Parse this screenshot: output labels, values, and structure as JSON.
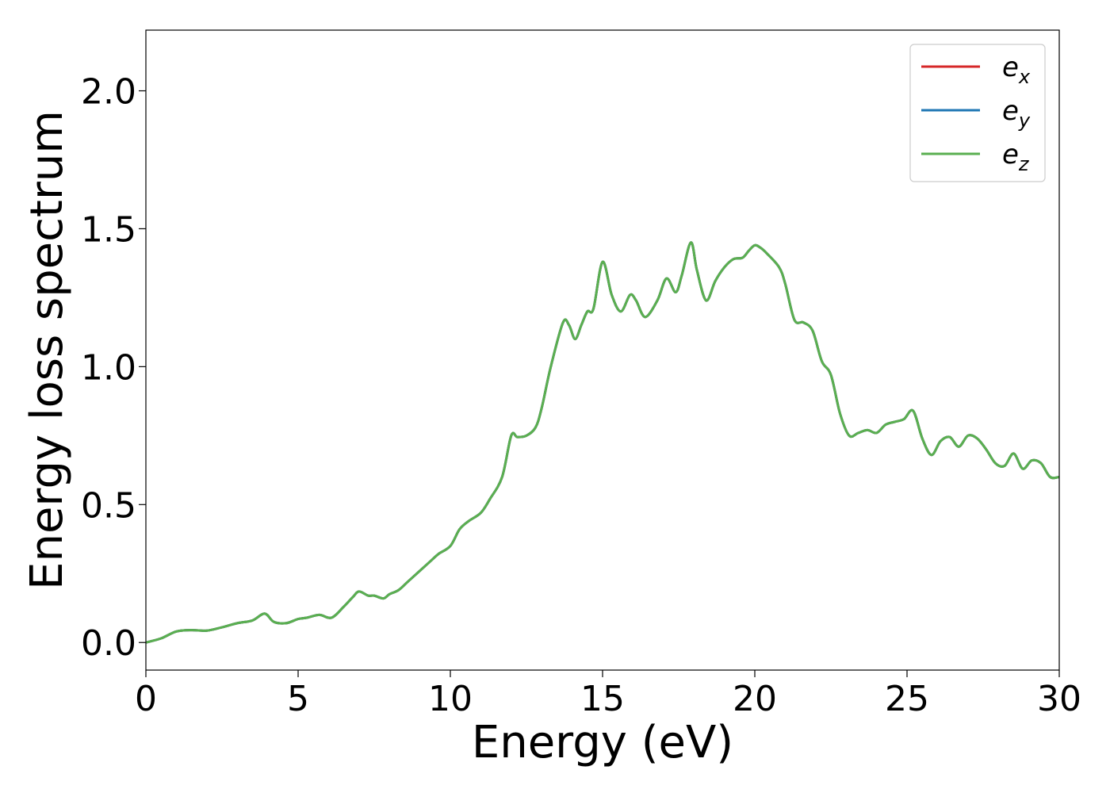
{
  "chart_data": {
    "type": "line",
    "xlabel": "Energy (eV)",
    "ylabel": "Energy loss spectrum",
    "xlim": [
      0,
      30
    ],
    "ylim": [
      -0.1,
      2.22
    ],
    "xticks": [
      0,
      5,
      10,
      15,
      20,
      25,
      30
    ],
    "xtick_labels": [
      "0",
      "5",
      "10",
      "15",
      "20",
      "25",
      "30"
    ],
    "yticks": [
      0.0,
      0.5,
      1.0,
      1.5,
      2.0
    ],
    "ytick_labels": [
      "0.0",
      "0.5",
      "1.0",
      "1.5",
      "2.0"
    ],
    "grid": false,
    "legend_position": "top-right",
    "x": [
      0,
      0.5,
      1,
      1.5,
      2,
      2.5,
      3,
      3.5,
      3.9,
      4.2,
      4.6,
      5,
      5.3,
      5.7,
      6.1,
      6.5,
      6.8,
      7,
      7.3,
      7.5,
      7.8,
      8,
      8.3,
      8.6,
      9,
      9.3,
      9.6,
      10,
      10.3,
      10.6,
      11,
      11.3,
      11.7,
      12,
      12.2,
      12.5,
      12.8,
      13,
      13.3,
      13.7,
      13.9,
      14.1,
      14.3,
      14.5,
      14.7,
      15,
      15.3,
      15.6,
      15.9,
      16.1,
      16.4,
      16.8,
      17.1,
      17.4,
      17.6,
      17.9,
      18.1,
      18.4,
      18.7,
      19,
      19.3,
      19.6,
      19.8,
      20,
      20.2,
      20.4,
      20.8,
      21,
      21.3,
      21.6,
      21.9,
      22.2,
      22.5,
      22.8,
      23.1,
      23.4,
      23.7,
      24,
      24.3,
      24.6,
      24.9,
      25.2,
      25.5,
      25.8,
      26.1,
      26.4,
      26.7,
      27,
      27.3,
      27.6,
      27.9,
      28.2,
      28.5,
      28.8,
      29.1,
      29.4,
      29.7,
      30
    ],
    "series": [
      {
        "name": "e_x",
        "label_base": "e",
        "label_sub": "x",
        "color": "#d62728",
        "values": [
          0.0,
          0.015,
          0.04,
          0.045,
          0.043,
          0.055,
          0.07,
          0.08,
          0.105,
          0.075,
          0.07,
          0.085,
          0.09,
          0.1,
          0.09,
          0.13,
          0.165,
          0.185,
          0.17,
          0.17,
          0.16,
          0.175,
          0.19,
          0.22,
          0.26,
          0.29,
          0.32,
          0.35,
          0.41,
          0.44,
          0.47,
          0.52,
          0.6,
          0.75,
          0.745,
          0.75,
          0.78,
          0.85,
          1.0,
          1.16,
          1.15,
          1.1,
          1.15,
          1.2,
          1.21,
          1.38,
          1.26,
          1.2,
          1.26,
          1.24,
          1.18,
          1.24,
          1.32,
          1.27,
          1.33,
          1.45,
          1.35,
          1.24,
          1.31,
          1.36,
          1.39,
          1.395,
          1.42,
          1.44,
          1.43,
          1.41,
          1.36,
          1.3,
          1.17,
          1.16,
          1.13,
          1.02,
          0.97,
          0.83,
          0.75,
          0.76,
          0.77,
          0.76,
          0.79,
          0.8,
          0.81,
          0.84,
          0.74,
          0.68,
          0.73,
          0.745,
          0.71,
          0.75,
          0.74,
          0.7,
          0.65,
          0.64,
          0.685,
          0.63,
          0.66,
          0.65,
          0.6,
          0.6
        ]
      },
      {
        "name": "e_y",
        "label_base": "e",
        "label_sub": "y",
        "color": "#1f77b4",
        "values": [
          0.0,
          0.015,
          0.04,
          0.045,
          0.043,
          0.055,
          0.07,
          0.08,
          0.105,
          0.075,
          0.07,
          0.085,
          0.09,
          0.1,
          0.09,
          0.13,
          0.165,
          0.185,
          0.17,
          0.17,
          0.16,
          0.175,
          0.19,
          0.22,
          0.26,
          0.29,
          0.32,
          0.35,
          0.41,
          0.44,
          0.47,
          0.52,
          0.6,
          0.75,
          0.745,
          0.75,
          0.78,
          0.85,
          1.0,
          1.16,
          1.15,
          1.1,
          1.15,
          1.2,
          1.21,
          1.38,
          1.26,
          1.2,
          1.26,
          1.24,
          1.18,
          1.24,
          1.32,
          1.27,
          1.33,
          1.45,
          1.35,
          1.24,
          1.31,
          1.36,
          1.39,
          1.395,
          1.42,
          1.44,
          1.43,
          1.41,
          1.36,
          1.3,
          1.17,
          1.16,
          1.13,
          1.02,
          0.97,
          0.83,
          0.75,
          0.76,
          0.77,
          0.76,
          0.79,
          0.8,
          0.81,
          0.84,
          0.74,
          0.68,
          0.73,
          0.745,
          0.71,
          0.75,
          0.74,
          0.7,
          0.65,
          0.64,
          0.685,
          0.63,
          0.66,
          0.65,
          0.6,
          0.6
        ]
      },
      {
        "name": "e_z",
        "label_base": "e",
        "label_sub": "z",
        "color": "#5aaf50",
        "values": [
          0.0,
          0.015,
          0.04,
          0.045,
          0.043,
          0.055,
          0.07,
          0.08,
          0.105,
          0.075,
          0.07,
          0.085,
          0.09,
          0.1,
          0.09,
          0.13,
          0.165,
          0.185,
          0.17,
          0.17,
          0.16,
          0.175,
          0.19,
          0.22,
          0.26,
          0.29,
          0.32,
          0.35,
          0.41,
          0.44,
          0.47,
          0.52,
          0.6,
          0.75,
          0.745,
          0.75,
          0.78,
          0.85,
          1.0,
          1.16,
          1.15,
          1.1,
          1.15,
          1.2,
          1.21,
          1.38,
          1.26,
          1.2,
          1.26,
          1.24,
          1.18,
          1.24,
          1.32,
          1.27,
          1.33,
          1.45,
          1.35,
          1.24,
          1.31,
          1.36,
          1.39,
          1.395,
          1.42,
          1.44,
          1.43,
          1.41,
          1.36,
          1.3,
          1.17,
          1.16,
          1.13,
          1.02,
          0.97,
          0.83,
          0.75,
          0.76,
          0.77,
          0.76,
          0.79,
          0.8,
          0.81,
          0.84,
          0.74,
          0.68,
          0.73,
          0.745,
          0.71,
          0.75,
          0.74,
          0.7,
          0.65,
          0.64,
          0.685,
          0.63,
          0.66,
          0.65,
          0.6,
          0.6
        ]
      }
    ]
  }
}
